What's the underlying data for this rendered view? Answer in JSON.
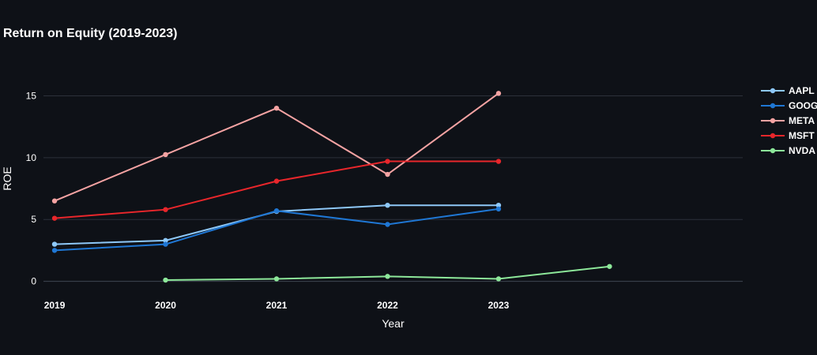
{
  "chart_data": {
    "type": "line",
    "title": "Return on Equity (2019-2023)",
    "xlabel": "Year",
    "ylabel": "ROE",
    "x_tick_labels": [
      "2019",
      "2020",
      "2021",
      "2022",
      "2023"
    ],
    "y_tick_labels": [
      "0",
      "5",
      "10",
      "15"
    ],
    "y_ticks": [
      0,
      5,
      10,
      15
    ],
    "xlim": [
      2018.9,
      2025.2
    ],
    "ylim": [
      -0.6,
      17.2
    ],
    "grid": true,
    "legend_position": "right",
    "series": [
      {
        "name": "AAPL",
        "color": "#8ec8f8",
        "x": [
          2019,
          2020,
          2021,
          2022,
          2023
        ],
        "y": [
          3.0,
          3.3,
          5.65,
          6.15,
          6.15
        ]
      },
      {
        "name": "GOOG",
        "color": "#1f77d4",
        "x": [
          2019,
          2020,
          2021,
          2022,
          2023
        ],
        "y": [
          2.5,
          3.0,
          5.7,
          4.6,
          5.85
        ]
      },
      {
        "name": "META",
        "color": "#f5a3a3",
        "x": [
          2019,
          2020,
          2021,
          2022,
          2023
        ],
        "y": [
          6.5,
          10.25,
          14.0,
          8.65,
          15.2
        ]
      },
      {
        "name": "MSFT",
        "color": "#e8262b",
        "x": [
          2019,
          2020,
          2021,
          2022,
          2023
        ],
        "y": [
          5.1,
          5.8,
          8.1,
          9.7,
          9.7
        ]
      },
      {
        "name": "NVDA",
        "color": "#8de89a",
        "x": [
          2020,
          2021,
          2022,
          2023,
          2024
        ],
        "y": [
          0.1,
          0.2,
          0.4,
          0.2,
          1.2
        ]
      }
    ]
  }
}
